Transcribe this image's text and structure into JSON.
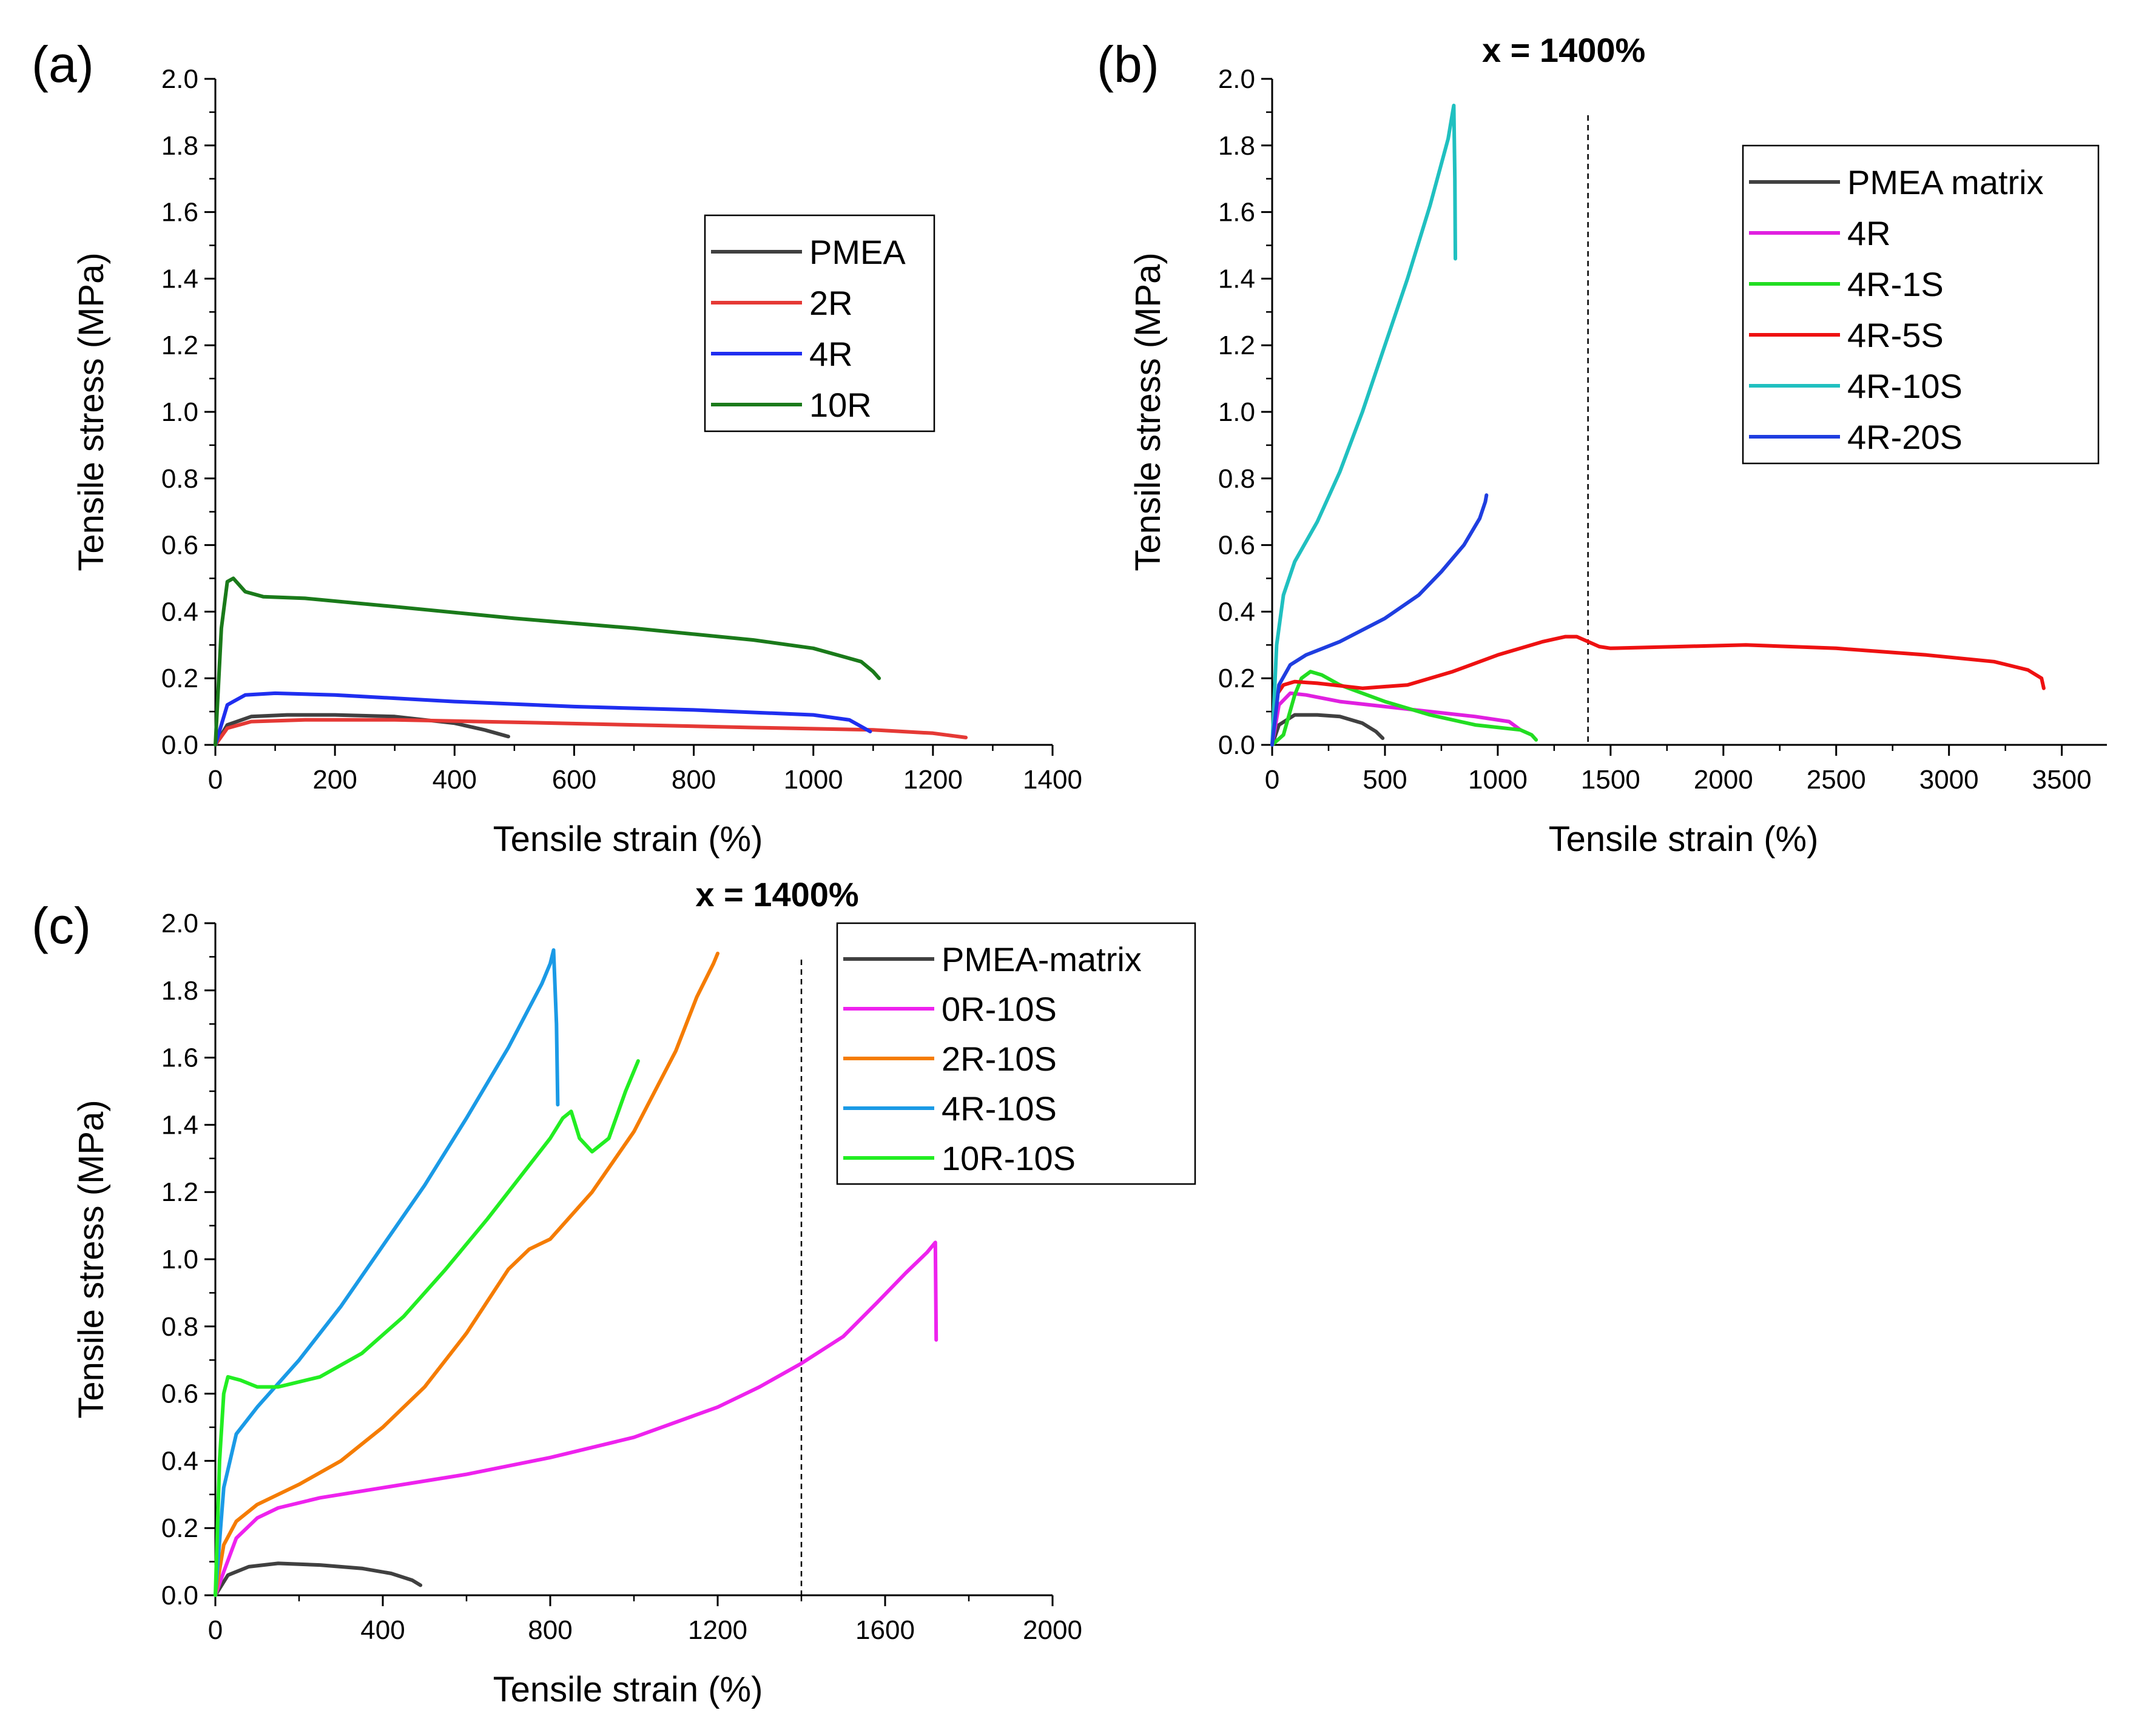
{
  "figure": {
    "panels": [
      "(a)",
      "(b)",
      "(c)"
    ]
  },
  "chart_data": [
    {
      "type": "line",
      "panel": "(a)",
      "xlabel": "Tensile strain (%)",
      "ylabel": "Tensile stress (MPa)",
      "xlim": [
        0,
        1400
      ],
      "ylim": [
        0,
        2.0
      ],
      "xticks": [
        0,
        200,
        400,
        600,
        800,
        1000,
        1200,
        1400
      ],
      "xticklabels": [
        "0",
        "200",
        "400",
        "600",
        "800",
        "1000",
        "1200",
        "1400"
      ],
      "yticks": [
        0,
        0.2,
        0.4,
        0.6,
        0.8,
        1.0,
        1.2,
        1.4,
        1.6,
        1.8,
        2.0
      ],
      "yticklabels": [
        "0.0",
        "0.2",
        "0.4",
        "0.6",
        "0.8",
        "1.0",
        "1.2",
        "1.4",
        "1.6",
        "1.8",
        "2.0"
      ],
      "legend_position": "upper-middle-right",
      "annotation": null,
      "series": [
        {
          "name": "PMEA",
          "color": "#404040",
          "x": [
            0,
            20,
            60,
            120,
            200,
            300,
            400,
            450,
            490
          ],
          "y": [
            0,
            0.06,
            0.085,
            0.09,
            0.09,
            0.085,
            0.065,
            0.045,
            0.025
          ]
        },
        {
          "name": "2R",
          "color": "#e53935",
          "x": [
            0,
            20,
            60,
            150,
            300,
            500,
            700,
            900,
            1100,
            1200,
            1255
          ],
          "y": [
            0,
            0.05,
            0.07,
            0.075,
            0.075,
            0.068,
            0.06,
            0.052,
            0.045,
            0.035,
            0.022
          ]
        },
        {
          "name": "4R",
          "color": "#1f2ef0",
          "x": [
            0,
            20,
            50,
            100,
            200,
            400,
            600,
            800,
            1000,
            1060,
            1095
          ],
          "y": [
            0,
            0.12,
            0.15,
            0.155,
            0.15,
            0.13,
            0.115,
            0.105,
            0.09,
            0.075,
            0.04
          ]
        },
        {
          "name": "10R",
          "color": "#1a7a1a",
          "x": [
            0,
            10,
            20,
            30,
            50,
            80,
            150,
            300,
            500,
            700,
            900,
            1000,
            1080,
            1100,
            1110
          ],
          "y": [
            0,
            0.35,
            0.49,
            0.5,
            0.46,
            0.445,
            0.44,
            0.415,
            0.38,
            0.35,
            0.315,
            0.29,
            0.25,
            0.22,
            0.2
          ]
        }
      ]
    },
    {
      "type": "line",
      "panel": "(b)",
      "xlabel": "Tensile strain (%)",
      "ylabel": "Tensile stress (MPa)",
      "xlim": [
        0,
        3700
      ],
      "ylim": [
        0,
        2.0
      ],
      "xticks": [
        0,
        500,
        1000,
        1500,
        2000,
        2500,
        3000,
        3500
      ],
      "xticklabels": [
        "0",
        "500",
        "1000",
        "1500",
        "2000",
        "2500",
        "3000",
        "3500"
      ],
      "yticks": [
        0,
        0.2,
        0.4,
        0.6,
        0.8,
        1.0,
        1.2,
        1.4,
        1.6,
        1.8,
        2.0
      ],
      "yticklabels": [
        "0.0",
        "0.2",
        "0.4",
        "0.6",
        "0.8",
        "1.0",
        "1.2",
        "1.4",
        "1.6",
        "1.8",
        "2.0"
      ],
      "legend_position": "top-right",
      "annotation": {
        "text": "x = 1400%",
        "x": 1400
      },
      "series": [
        {
          "name": "PMEA matrix",
          "color": "#404040",
          "x": [
            0,
            30,
            100,
            200,
            300,
            400,
            460,
            490
          ],
          "y": [
            0,
            0.06,
            0.09,
            0.09,
            0.085,
            0.065,
            0.04,
            0.02
          ]
        },
        {
          "name": "4R",
          "color": "#e020e0",
          "x": [
            0,
            30,
            80,
            150,
            300,
            500,
            700,
            900,
            1050,
            1100
          ],
          "y": [
            0,
            0.12,
            0.155,
            0.15,
            0.13,
            0.115,
            0.1,
            0.085,
            0.07,
            0.045
          ]
        },
        {
          "name": "4R-1S",
          "color": "#22dd22",
          "x": [
            0,
            50,
            100,
            130,
            170,
            220,
            300,
            500,
            700,
            900,
            1100,
            1150,
            1170
          ],
          "y": [
            0,
            0.03,
            0.15,
            0.2,
            0.22,
            0.21,
            0.18,
            0.13,
            0.09,
            0.06,
            0.045,
            0.03,
            0.015
          ]
        },
        {
          "name": "4R-5S",
          "color": "#ee1111",
          "x": [
            0,
            20,
            50,
            100,
            200,
            400,
            600,
            800,
            1000,
            1200,
            1300,
            1350,
            1400,
            1450,
            1500,
            1800,
            2100,
            2500,
            2900,
            3200,
            3350,
            3410,
            3420
          ],
          "y": [
            0,
            0.15,
            0.18,
            0.19,
            0.185,
            0.17,
            0.18,
            0.22,
            0.27,
            0.31,
            0.325,
            0.325,
            0.31,
            0.295,
            0.29,
            0.295,
            0.3,
            0.29,
            0.27,
            0.25,
            0.225,
            0.2,
            0.17
          ]
        },
        {
          "name": "4R-10S",
          "color": "#20c0c0",
          "x": [
            0,
            20,
            50,
            100,
            200,
            300,
            400,
            500,
            600,
            700,
            780,
            800,
            805,
            810,
            812
          ],
          "y": [
            0,
            0.3,
            0.45,
            0.55,
            0.67,
            0.82,
            1.0,
            1.2,
            1.4,
            1.62,
            1.82,
            1.9,
            1.92,
            1.7,
            1.46
          ]
        },
        {
          "name": "4R-20S",
          "color": "#1f3ee0",
          "x": [
            0,
            30,
            80,
            150,
            300,
            500,
            650,
            750,
            850,
            920,
            945,
            950
          ],
          "y": [
            0,
            0.18,
            0.24,
            0.27,
            0.31,
            0.38,
            0.45,
            0.52,
            0.6,
            0.68,
            0.73,
            0.75
          ]
        }
      ]
    },
    {
      "type": "line",
      "panel": "(c)",
      "xlabel": "Tensile strain (%)",
      "ylabel": "Tensile stress (MPa)",
      "xlim": [
        0,
        2000
      ],
      "ylim": [
        0,
        2.0
      ],
      "xticks": [
        0,
        400,
        800,
        1200,
        1600,
        2000
      ],
      "xticklabels": [
        "0",
        "400",
        "800",
        "1200",
        "1600",
        "2000"
      ],
      "yticks": [
        0,
        0.2,
        0.4,
        0.6,
        0.8,
        1.0,
        1.2,
        1.4,
        1.6,
        1.8,
        2.0
      ],
      "yticklabels": [
        "0.0",
        "0.2",
        "0.4",
        "0.6",
        "0.8",
        "1.0",
        "1.2",
        "1.4",
        "1.6",
        "1.8",
        "2.0"
      ],
      "legend_position": "top-right",
      "annotation": {
        "text": "x = 1400%",
        "x": 1400
      },
      "series": [
        {
          "name": "PMEA-matrix",
          "color": "#404040",
          "x": [
            0,
            30,
            80,
            150,
            250,
            350,
            420,
            470,
            490
          ],
          "y": [
            0,
            0.06,
            0.085,
            0.095,
            0.09,
            0.08,
            0.065,
            0.045,
            0.03
          ]
        },
        {
          "name": "0R-10S",
          "color": "#ee22ee",
          "x": [
            0,
            20,
            50,
            100,
            150,
            250,
            400,
            600,
            800,
            1000,
            1200,
            1300,
            1400,
            1500,
            1580,
            1650,
            1700,
            1720,
            1722
          ],
          "y": [
            0,
            0.07,
            0.17,
            0.23,
            0.26,
            0.29,
            0.32,
            0.36,
            0.41,
            0.47,
            0.56,
            0.62,
            0.69,
            0.77,
            0.87,
            0.96,
            1.02,
            1.05,
            0.76
          ]
        },
        {
          "name": "2R-10S",
          "color": "#f57c00",
          "x": [
            0,
            20,
            50,
            100,
            200,
            300,
            400,
            500,
            600,
            700,
            750,
            800,
            900,
            1000,
            1100,
            1150,
            1190,
            1200
          ],
          "y": [
            0,
            0.15,
            0.22,
            0.27,
            0.33,
            0.4,
            0.5,
            0.62,
            0.78,
            0.97,
            1.03,
            1.06,
            1.2,
            1.38,
            1.62,
            1.78,
            1.88,
            1.91
          ]
        },
        {
          "name": "4R-10S",
          "color": "#1a9ae6",
          "x": [
            0,
            20,
            50,
            100,
            200,
            300,
            400,
            500,
            600,
            700,
            780,
            800,
            808,
            815,
            818
          ],
          "y": [
            0,
            0.32,
            0.48,
            0.56,
            0.7,
            0.86,
            1.04,
            1.22,
            1.42,
            1.63,
            1.82,
            1.88,
            1.92,
            1.7,
            1.46
          ]
        },
        {
          "name": "10R-10S",
          "color": "#22ee22",
          "x": [
            0,
            10,
            20,
            30,
            60,
            100,
            150,
            250,
            350,
            450,
            550,
            650,
            750,
            800,
            830,
            850,
            870,
            900,
            940,
            980,
            1000,
            1010
          ],
          "y": [
            0,
            0.4,
            0.6,
            0.65,
            0.64,
            0.62,
            0.62,
            0.65,
            0.72,
            0.83,
            0.97,
            1.12,
            1.28,
            1.36,
            1.42,
            1.44,
            1.36,
            1.32,
            1.36,
            1.5,
            1.56,
            1.59
          ]
        }
      ]
    }
  ]
}
